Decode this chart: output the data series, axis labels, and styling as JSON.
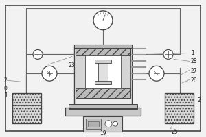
{
  "bg_color": "#f2f2f2",
  "lc": "#666666",
  "bc": "#444444",
  "white": "#ffffff",
  "gray_light": "#d8d8d8",
  "gray_med": "#bbbbbb",
  "gray_dark": "#999999"
}
